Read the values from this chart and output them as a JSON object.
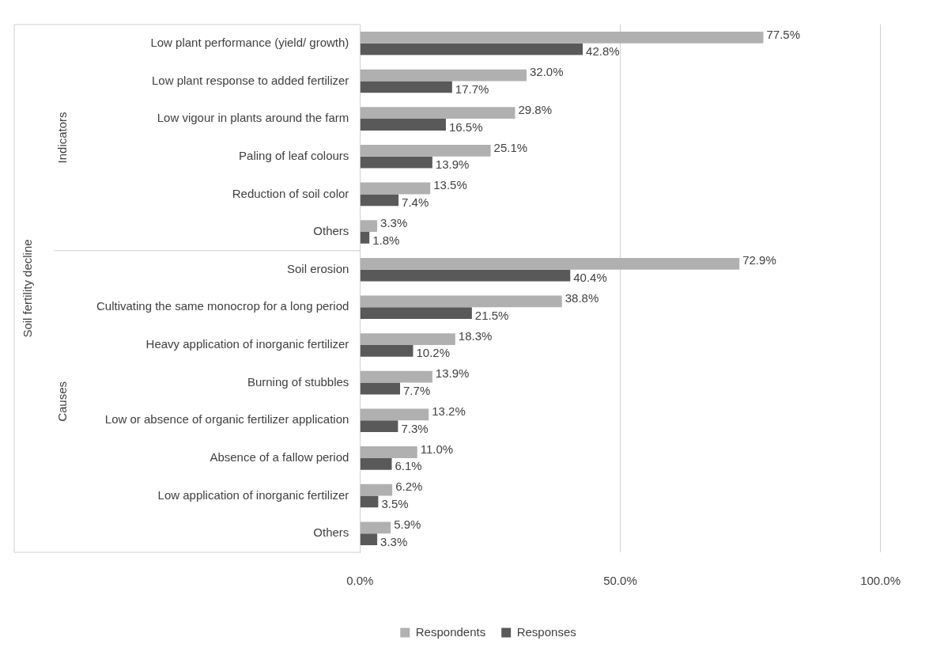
{
  "chart_data": {
    "type": "bar",
    "orientation": "horizontal",
    "annotations": [
      "Soil fertility decline",
      "Indicators",
      "Causes"
    ],
    "categories": [
      "Low plant performance (yield/ growth)",
      "Low plant response to added fertilizer",
      "Low vigour in plants around the farm",
      "Paling of leaf colours",
      "Reduction of soil color",
      "Others",
      "Soil erosion",
      "Cultivating the same monocrop for a long period",
      "Heavy application of inorganic fertilizer",
      "Burning of stubbles",
      "Low or absence of organic fertilizer application",
      "Absence of a fallow period",
      "Low application of inorganic fertilizer",
      "Others"
    ],
    "series": [
      {
        "name": "Respondents",
        "color": "#b0b0b0",
        "values": [
          77.5,
          32.0,
          29.8,
          25.1,
          13.5,
          3.3,
          72.9,
          38.8,
          18.3,
          13.9,
          13.2,
          11.0,
          6.2,
          5.9
        ],
        "value_labels": [
          "77.5%",
          "32.0%",
          "29.8%",
          "25.1%",
          "13.5%",
          "3.3%",
          "72.9%",
          "38.8%",
          "18.3%",
          "13.9%",
          "13.2%",
          "11.0%",
          "6.2%",
          "5.9%"
        ]
      },
      {
        "name": "Responses",
        "color": "#595959",
        "values": [
          42.8,
          17.7,
          16.5,
          13.9,
          7.4,
          1.8,
          40.4,
          21.5,
          10.2,
          7.7,
          7.3,
          6.1,
          3.5,
          3.3
        ],
        "value_labels": [
          "42.8%",
          "17.7%",
          "16.5%",
          "13.9%",
          "7.4%",
          "1.8%",
          "40.4%",
          "21.5%",
          "10.2%",
          "7.7%",
          "7.3%",
          "6.1%",
          "3.5%",
          "3.3%"
        ]
      }
    ],
    "xlim": [
      0,
      100
    ],
    "xticks": [
      {
        "value": 0,
        "label": "0.0%"
      },
      {
        "value": 50,
        "label": "50.0%"
      },
      {
        "value": 100,
        "label": "100.0%"
      }
    ],
    "grid": "x",
    "legend": "bottom"
  }
}
